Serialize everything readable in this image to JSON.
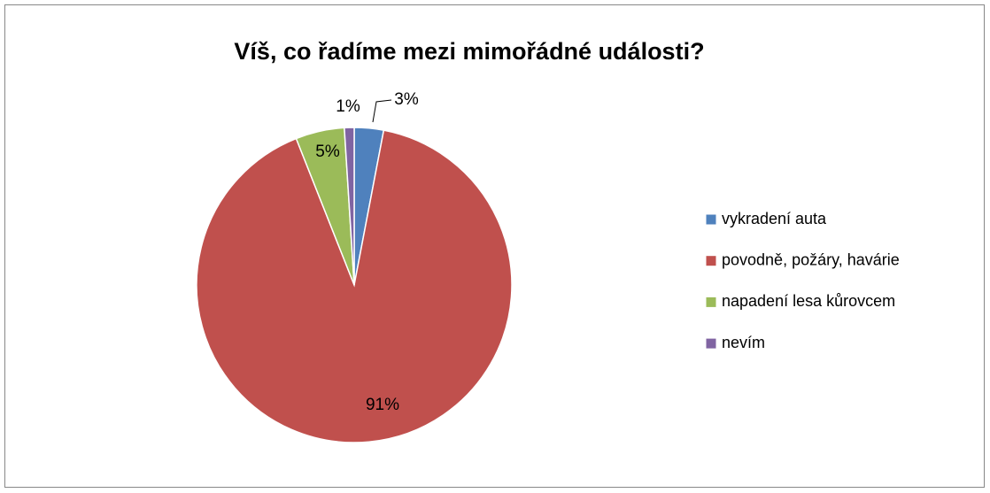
{
  "chart_data": {
    "type": "pie",
    "title": "Víš, co řadíme mezi mimořádné události?",
    "categories": [
      "vykradení auta",
      "povodně, požáry, havárie",
      "napadení lesa kůrovcem",
      "nevím"
    ],
    "values": [
      3,
      91,
      5,
      1
    ],
    "value_labels": [
      "3%",
      "91%",
      "5%",
      "1%"
    ],
    "colors": [
      "#4f81bd",
      "#c0504d",
      "#9bbb59",
      "#8064a2"
    ],
    "legend": "right"
  }
}
